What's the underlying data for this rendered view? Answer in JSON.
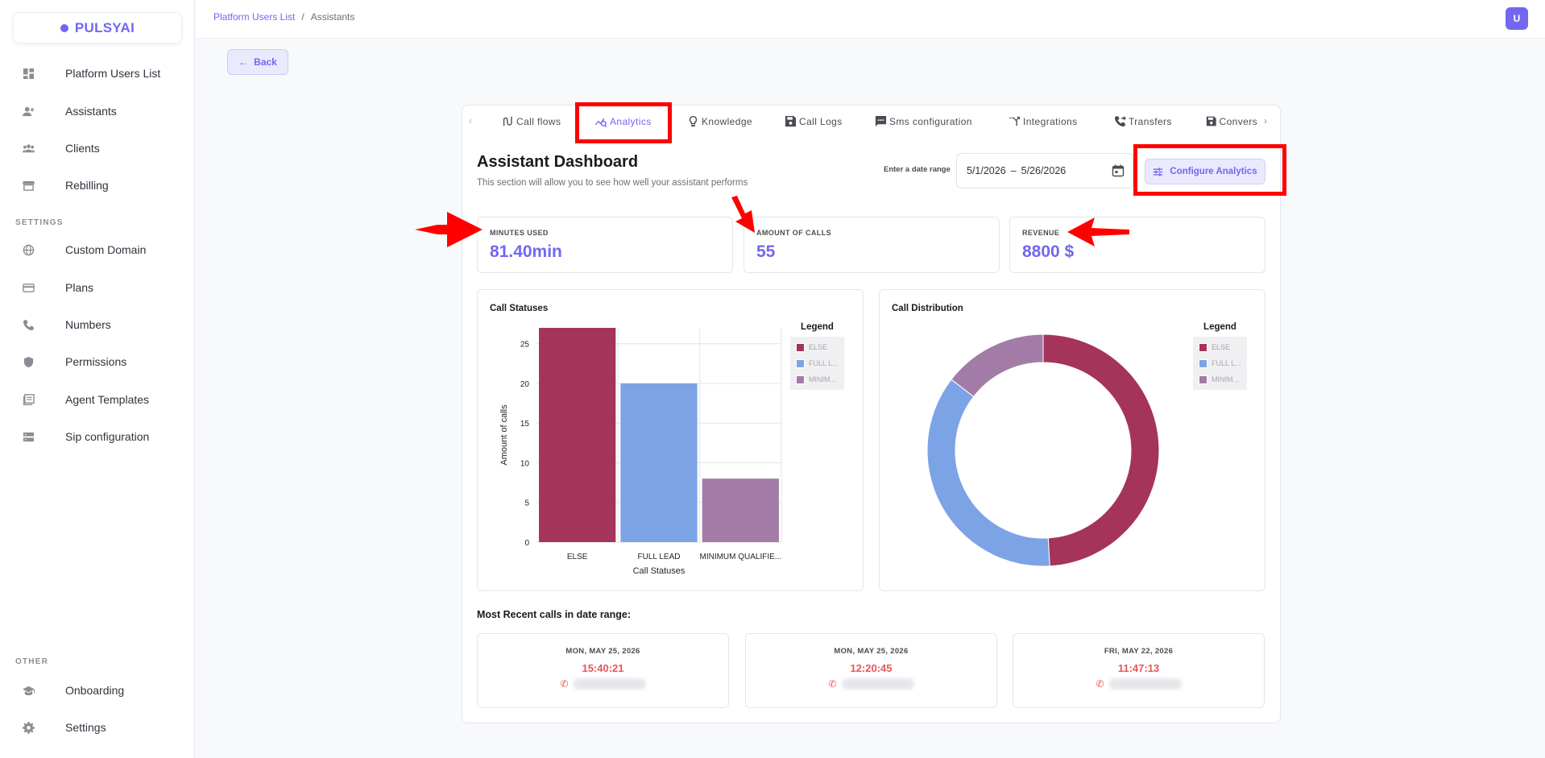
{
  "app": {
    "name": "PULSYAI",
    "brand_color": "#7367f0"
  },
  "sidebar": {
    "items": [
      {
        "label": "Platform Users List",
        "icon": "dashboard-icon"
      },
      {
        "label": "Assistants",
        "icon": "person-add-icon"
      },
      {
        "label": "Clients",
        "icon": "group-icon"
      },
      {
        "label": "Rebilling",
        "icon": "storefront-icon"
      }
    ],
    "settings_label": "SETTINGS",
    "settings_items": [
      {
        "label": "Custom Domain",
        "icon": "globe-icon"
      },
      {
        "label": "Plans",
        "icon": "credit-card-icon"
      },
      {
        "label": "Numbers",
        "icon": "phone-icon"
      },
      {
        "label": "Permissions",
        "icon": "shield-icon"
      },
      {
        "label": "Agent Templates",
        "icon": "library-icon"
      },
      {
        "label": "Sip configuration",
        "icon": "storage-icon"
      }
    ],
    "other_label": "OTHER",
    "other_items": [
      {
        "label": "Onboarding",
        "icon": "graduation-cap-icon"
      },
      {
        "label": "Settings",
        "icon": "gear-icon"
      }
    ]
  },
  "header": {
    "breadcrumb": [
      "Platform Users List",
      "Assistants"
    ],
    "separator": "/",
    "avatar_initial": "U"
  },
  "back_label": "Back",
  "tabs": [
    {
      "label": "Call flows",
      "icon": "call-flow-icon"
    },
    {
      "label": "Analytics",
      "icon": "analytics-icon",
      "active": true
    },
    {
      "label": "Knowledge",
      "icon": "lightbulb-icon"
    },
    {
      "label": "Call Logs",
      "icon": "save-icon"
    },
    {
      "label": "Sms configuration",
      "icon": "sms-icon"
    },
    {
      "label": "Integrations",
      "icon": "merge-icon"
    },
    {
      "label": "Transfers",
      "icon": "phone-forward-icon"
    },
    {
      "label": "Convers",
      "icon": "save-icon"
    }
  ],
  "dashboard": {
    "title": "Assistant Dashboard",
    "subtitle": "This section will allow you to see how well your assistant performs",
    "date_range_label": "Enter a date range",
    "date_start": "5/1/2026",
    "date_separator": "–",
    "date_end": "5/26/2026",
    "configure_label": "Configure Analytics"
  },
  "stats": [
    {
      "label": "MINUTES USED",
      "value": "81.40min"
    },
    {
      "label": "AMOUNT OF CALLS",
      "value": "55"
    },
    {
      "label": "REVENUE",
      "value": "8800 $"
    }
  ],
  "colors": {
    "else": "#a5345a",
    "full_lead": "#7ca3e6",
    "minimum": "#a27ca6",
    "annotation": "#ff0000"
  },
  "chart_data": [
    {
      "type": "bar",
      "title": "Call Statuses",
      "categories": [
        "ELSE",
        "FULL LEAD",
        "MINIMUM QUALIFIE..."
      ],
      "values": [
        27,
        20,
        8
      ],
      "xlabel": "Call Statuses",
      "ylabel": "Amount of calls",
      "ylim": [
        0,
        27
      ],
      "yticks": [
        "0",
        "5",
        "10",
        "15",
        "20",
        "25"
      ],
      "legend_title": "Legend",
      "legend": [
        "ELSE",
        "FULL L...",
        "MINIM..."
      ],
      "legend_position": "right",
      "grid": true
    },
    {
      "type": "pie",
      "title": "Call Distribution",
      "labels": [
        "ELSE",
        "FULL LEAD",
        "MINIMUM QUALIFIED"
      ],
      "values": [
        27,
        20,
        8
      ],
      "donut": true,
      "legend_title": "Legend",
      "legend": [
        "ELSE",
        "FULL L...",
        "MINIM..."
      ],
      "legend_position": "right"
    }
  ],
  "recent": {
    "title": "Most Recent calls in date range:",
    "calls": [
      {
        "date": "MON, MAY 25, 2026",
        "time": "15:40:21"
      },
      {
        "date": "MON, MAY 25, 2026",
        "time": "12:20:45"
      },
      {
        "date": "FRI, MAY 22, 2026",
        "time": "11:47:13"
      }
    ]
  }
}
